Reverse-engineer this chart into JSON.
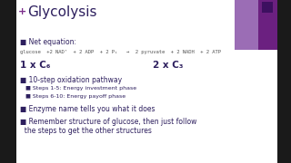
{
  "bg_color": "#ffffff",
  "left_bar_color": "#1a1a1a",
  "title": "Glycolysis",
  "title_color": "#2d1f5e",
  "title_fontsize": 11,
  "plus_color": "#7b2d8b",
  "plus_symbol": "+",
  "bullet_color": "#2d1f5e",
  "bullet_square": "■",
  "net_eq_label": "Net equation:",
  "net_eq_text": "glucose  +2 NAD⁺  + 2 ADP  + 2 Pᵢ   →  2 pyruvate  + 2 NADH  + 2 ATP",
  "c6_text": "1 x C₆",
  "c3_text": "2 x C₃",
  "bullet1": "10-step oxidation pathway",
  "sub1": "Steps 1-5: Energy investment phase",
  "sub2": "Steps 6-10: Energy payoff phase",
  "bullet2": "Enzyme name tells you what it does",
  "bullet3_line1": "Remember structure of glucose, then just follow",
  "bullet3_line2": "  the steps to get the other structures",
  "eq_color": "#555555",
  "purple_bar_light": "#9b6db5",
  "purple_bar_dark": "#6b2080",
  "dark_purple_small": "#3d1060"
}
